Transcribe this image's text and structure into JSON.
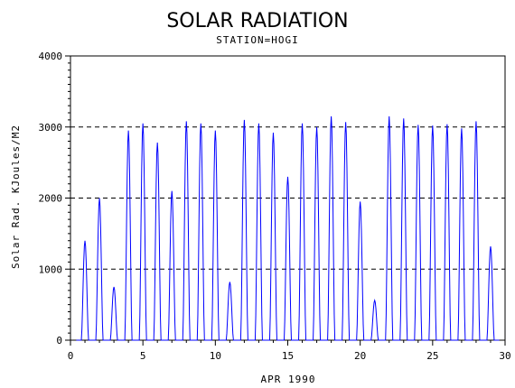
{
  "chart_data": {
    "type": "line",
    "title": "SOLAR RADIATION",
    "subtitle": "STATION=HOGI",
    "xlabel": "APR 1990",
    "ylabel": "Solar Rad. KJoules/M2",
    "xlim": [
      0,
      30
    ],
    "ylim": [
      0,
      4000
    ],
    "xticks": [
      0,
      5,
      10,
      15,
      20,
      25,
      30
    ],
    "yticks": [
      0,
      1000,
      2000,
      3000,
      4000
    ],
    "grid": "horizontal-dashed",
    "line_color": "#0000ff",
    "daily_peaks": [
      {
        "day": 1,
        "peak": 1400
      },
      {
        "day": 2,
        "peak": 2000
      },
      {
        "day": 3,
        "peak": 750
      },
      {
        "day": 4,
        "peak": 2950
      },
      {
        "day": 5,
        "peak": 3050
      },
      {
        "day": 6,
        "peak": 2780
      },
      {
        "day": 7,
        "peak": 2100
      },
      {
        "day": 8,
        "peak": 3080
      },
      {
        "day": 9,
        "peak": 3050
      },
      {
        "day": 10,
        "peak": 2950
      },
      {
        "day": 11,
        "peak": 820
      },
      {
        "day": 12,
        "peak": 3100
      },
      {
        "day": 13,
        "peak": 3050
      },
      {
        "day": 14,
        "peak": 2920
      },
      {
        "day": 15,
        "peak": 2300
      },
      {
        "day": 16,
        "peak": 3050
      },
      {
        "day": 17,
        "peak": 3000
      },
      {
        "day": 18,
        "peak": 3150
      },
      {
        "day": 19,
        "peak": 3070
      },
      {
        "day": 20,
        "peak": 1950
      },
      {
        "day": 21,
        "peak": 560
      },
      {
        "day": 22,
        "peak": 3150
      },
      {
        "day": 23,
        "peak": 3120
      },
      {
        "day": 24,
        "peak": 3030
      },
      {
        "day": 25,
        "peak": 3020
      },
      {
        "day": 26,
        "peak": 3040
      },
      {
        "day": 27,
        "peak": 2980
      },
      {
        "day": 28,
        "peak": 3080
      },
      {
        "day": 29,
        "peak": 1320
      }
    ]
  }
}
